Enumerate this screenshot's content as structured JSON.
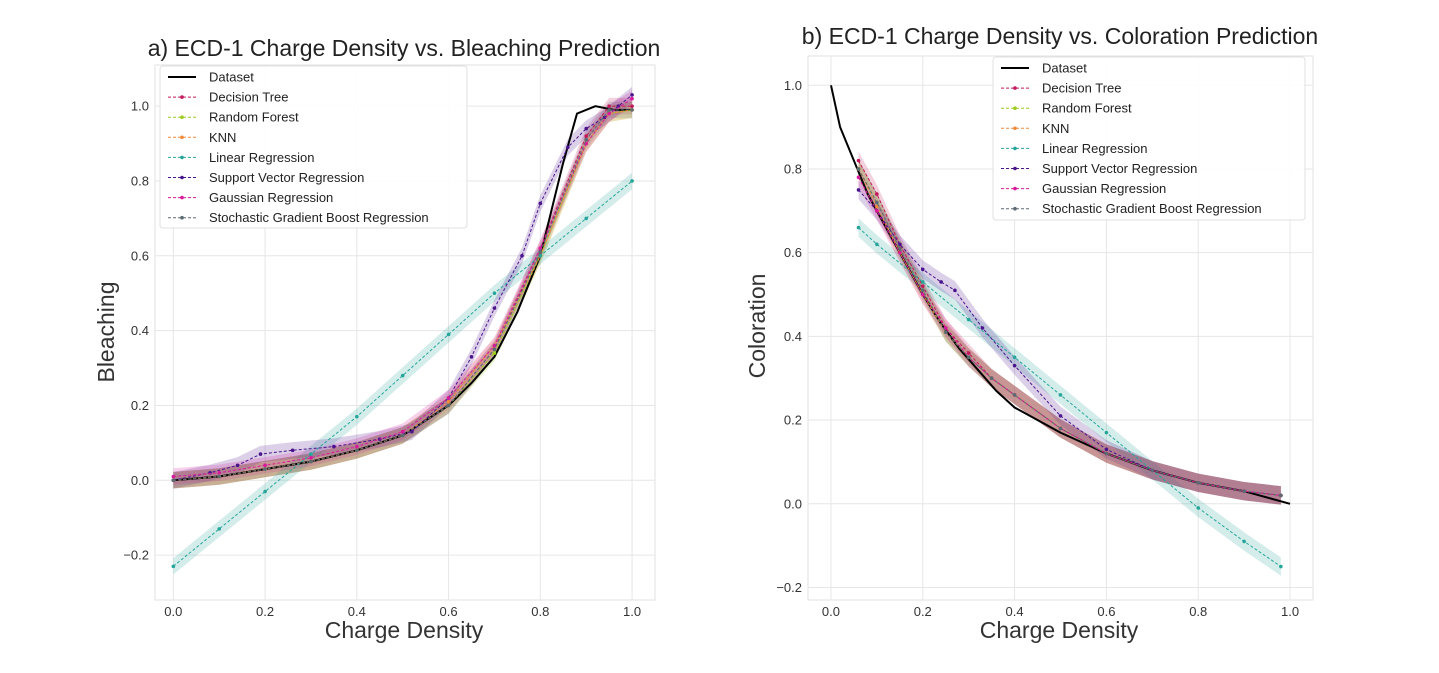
{
  "figure": {
    "panels": [
      {
        "title": "a) ECD-1 Charge Density vs. Bleaching Prediction",
        "xlabel": "Charge Density",
        "ylabel": "Bleaching"
      },
      {
        "title": "b) ECD-1 Charge Density vs. Coloration Prediction",
        "xlabel": "Charge Density",
        "ylabel": "Coloration"
      }
    ]
  },
  "chart_data": [
    {
      "type": "line",
      "title": "a) ECD-1 Charge Density vs. Bleaching Prediction",
      "xlabel": "Charge Density",
      "ylabel": "Bleaching",
      "xlim": [
        -0.04,
        1.05
      ],
      "ylim": [
        -0.32,
        1.11
      ],
      "xticks": [
        0.0,
        0.2,
        0.4,
        0.6,
        0.8,
        1.0
      ],
      "xtick_labels": [
        "0.0",
        "0.2",
        "0.4",
        "0.6",
        "0.8",
        "1.0"
      ],
      "yticks": [
        -0.2,
        0.0,
        0.2,
        0.4,
        0.6,
        0.8,
        1.0
      ],
      "ytick_labels": [
        "−0.2",
        "0.0",
        "0.2",
        "0.4",
        "0.6",
        "0.8",
        "1.0"
      ],
      "grid": true,
      "legend_position": "top-left",
      "series": [
        {
          "name": "Dataset",
          "color": "#000000",
          "style": "solid",
          "x": [
            0.0,
            0.1,
            0.2,
            0.3,
            0.4,
            0.5,
            0.55,
            0.6,
            0.65,
            0.7,
            0.75,
            0.8,
            0.85,
            0.88,
            0.92,
            0.96,
            1.0
          ],
          "y": [
            0.0,
            0.01,
            0.03,
            0.05,
            0.08,
            0.12,
            0.16,
            0.2,
            0.26,
            0.33,
            0.45,
            0.6,
            0.85,
            0.98,
            1.0,
            0.99,
            0.99
          ]
        },
        {
          "name": "Decision Tree",
          "color": "#c2185b",
          "style": "dashed",
          "x": [
            0.0,
            0.1,
            0.2,
            0.3,
            0.4,
            0.5,
            0.6,
            0.7,
            0.8,
            0.9,
            0.95,
            1.0
          ],
          "y": [
            0.0,
            0.01,
            0.03,
            0.05,
            0.08,
            0.12,
            0.2,
            0.35,
            0.62,
            0.92,
            1.0,
            1.0
          ]
        },
        {
          "name": "Random Forest",
          "color": "#9ccc1f",
          "style": "dashed",
          "x": [
            0.0,
            0.1,
            0.2,
            0.3,
            0.4,
            0.5,
            0.6,
            0.7,
            0.8,
            0.9,
            0.95,
            1.0
          ],
          "y": [
            0.0,
            0.01,
            0.03,
            0.05,
            0.08,
            0.12,
            0.2,
            0.34,
            0.6,
            0.9,
            0.98,
            0.99
          ]
        },
        {
          "name": "KNN",
          "color": "#f08a3a",
          "style": "dashed",
          "x": [
            0.0,
            0.1,
            0.2,
            0.3,
            0.4,
            0.5,
            0.6,
            0.7,
            0.8,
            0.9,
            0.95,
            1.0
          ],
          "y": [
            0.0,
            0.01,
            0.03,
            0.05,
            0.08,
            0.12,
            0.21,
            0.36,
            0.6,
            0.9,
            0.98,
            0.99
          ]
        },
        {
          "name": "Linear Regression",
          "color": "#26a69a",
          "style": "dashed",
          "x": [
            0.0,
            0.1,
            0.2,
            0.3,
            0.4,
            0.5,
            0.6,
            0.7,
            0.8,
            0.9,
            1.0
          ],
          "y": [
            -0.23,
            -0.13,
            -0.03,
            0.07,
            0.17,
            0.28,
            0.39,
            0.5,
            0.6,
            0.7,
            0.8
          ]
        },
        {
          "name": "Support Vector Regression",
          "color": "#4a148c",
          "style": "dashed",
          "x": [
            0.0,
            0.08,
            0.14,
            0.19,
            0.26,
            0.35,
            0.45,
            0.52,
            0.6,
            0.65,
            0.7,
            0.76,
            0.8,
            0.86,
            0.9,
            0.94,
            0.97,
            1.0
          ],
          "y": [
            0.0,
            0.02,
            0.04,
            0.07,
            0.08,
            0.09,
            0.11,
            0.13,
            0.22,
            0.33,
            0.46,
            0.6,
            0.74,
            0.89,
            0.94,
            0.97,
            1.0,
            1.03
          ]
        },
        {
          "name": "Gaussian Regression",
          "color": "#d81b9a",
          "style": "dashed",
          "x": [
            0.0,
            0.1,
            0.2,
            0.3,
            0.4,
            0.5,
            0.6,
            0.7,
            0.8,
            0.9,
            0.95,
            1.0
          ],
          "y": [
            0.01,
            0.02,
            0.04,
            0.06,
            0.09,
            0.13,
            0.22,
            0.36,
            0.62,
            0.9,
            0.98,
            1.02
          ]
        },
        {
          "name": "Stochastic Gradient Boost Regression",
          "color": "#5c6b73",
          "style": "dashed",
          "x": [
            0.0,
            0.1,
            0.2,
            0.3,
            0.4,
            0.5,
            0.6,
            0.7,
            0.8,
            0.9,
            0.95,
            1.0
          ],
          "y": [
            0.0,
            0.01,
            0.03,
            0.05,
            0.08,
            0.12,
            0.2,
            0.35,
            0.61,
            0.91,
            0.99,
            0.99
          ]
        }
      ]
    },
    {
      "type": "line",
      "title": "b) ECD-1 Charge Density vs. Coloration Prediction",
      "xlabel": "Charge Density",
      "ylabel": "Coloration",
      "xlim": [
        -0.05,
        1.05
      ],
      "ylim": [
        -0.23,
        1.07
      ],
      "xticks": [
        0.0,
        0.2,
        0.4,
        0.6,
        0.8,
        1.0
      ],
      "xtick_labels": [
        "0.0",
        "0.2",
        "0.4",
        "0.6",
        "0.8",
        "1.0"
      ],
      "yticks": [
        -0.2,
        0.0,
        0.2,
        0.4,
        0.6,
        0.8,
        1.0
      ],
      "ytick_labels": [
        "−0.2",
        "0.0",
        "0.2",
        "0.4",
        "0.6",
        "0.8",
        "1.0"
      ],
      "grid": true,
      "legend_position": "top-right",
      "series": [
        {
          "name": "Dataset",
          "color": "#000000",
          "style": "solid",
          "x": [
            0.0,
            0.02,
            0.05,
            0.08,
            0.12,
            0.16,
            0.2,
            0.24,
            0.28,
            0.32,
            0.36,
            0.4,
            0.5,
            0.6,
            0.7,
            0.8,
            0.9,
            1.0
          ],
          "y": [
            1.0,
            0.9,
            0.82,
            0.74,
            0.66,
            0.58,
            0.5,
            0.43,
            0.37,
            0.32,
            0.27,
            0.23,
            0.17,
            0.12,
            0.08,
            0.05,
            0.03,
            0.0
          ]
        },
        {
          "name": "Decision Tree",
          "color": "#c2185b",
          "style": "dashed",
          "x": [
            0.06,
            0.1,
            0.15,
            0.2,
            0.25,
            0.3,
            0.35,
            0.4,
            0.5,
            0.6,
            0.7,
            0.8,
            0.9,
            0.98
          ],
          "y": [
            0.82,
            0.74,
            0.62,
            0.52,
            0.42,
            0.36,
            0.3,
            0.26,
            0.18,
            0.12,
            0.08,
            0.05,
            0.03,
            0.02
          ]
        },
        {
          "name": "Random Forest",
          "color": "#9ccc1f",
          "style": "dashed",
          "x": [
            0.06,
            0.1,
            0.15,
            0.2,
            0.25,
            0.3,
            0.35,
            0.4,
            0.5,
            0.6,
            0.7,
            0.8,
            0.9,
            0.98
          ],
          "y": [
            0.8,
            0.72,
            0.61,
            0.51,
            0.41,
            0.35,
            0.3,
            0.26,
            0.18,
            0.12,
            0.08,
            0.05,
            0.03,
            0.02
          ]
        },
        {
          "name": "KNN",
          "color": "#f08a3a",
          "style": "dashed",
          "x": [
            0.06,
            0.1,
            0.15,
            0.2,
            0.25,
            0.3,
            0.35,
            0.4,
            0.5,
            0.6,
            0.7,
            0.8,
            0.9,
            0.98
          ],
          "y": [
            0.8,
            0.71,
            0.6,
            0.5,
            0.41,
            0.35,
            0.3,
            0.26,
            0.18,
            0.12,
            0.08,
            0.05,
            0.03,
            0.02
          ]
        },
        {
          "name": "Linear Regression",
          "color": "#26a69a",
          "style": "dashed",
          "x": [
            0.06,
            0.1,
            0.2,
            0.3,
            0.4,
            0.5,
            0.6,
            0.7,
            0.8,
            0.9,
            0.98
          ],
          "y": [
            0.66,
            0.62,
            0.53,
            0.44,
            0.35,
            0.26,
            0.17,
            0.08,
            -0.01,
            -0.09,
            -0.15
          ]
        },
        {
          "name": "Support Vector Regression",
          "color": "#4a148c",
          "style": "dashed",
          "x": [
            0.06,
            0.1,
            0.15,
            0.2,
            0.24,
            0.27,
            0.33,
            0.4,
            0.5,
            0.6,
            0.7,
            0.8,
            0.9,
            0.98
          ],
          "y": [
            0.75,
            0.7,
            0.62,
            0.56,
            0.53,
            0.51,
            0.42,
            0.33,
            0.21,
            0.13,
            0.08,
            0.05,
            0.03,
            0.02
          ]
        },
        {
          "name": "Gaussian Regression",
          "color": "#d81b9a",
          "style": "dashed",
          "x": [
            0.06,
            0.1,
            0.15,
            0.2,
            0.25,
            0.3,
            0.35,
            0.4,
            0.5,
            0.6,
            0.7,
            0.8,
            0.9,
            0.98
          ],
          "y": [
            0.78,
            0.7,
            0.6,
            0.5,
            0.42,
            0.35,
            0.3,
            0.26,
            0.18,
            0.12,
            0.08,
            0.05,
            0.03,
            0.02
          ]
        },
        {
          "name": "Stochastic Gradient Boost Regression",
          "color": "#5c6b73",
          "style": "dashed",
          "x": [
            0.06,
            0.1,
            0.15,
            0.2,
            0.25,
            0.3,
            0.35,
            0.4,
            0.5,
            0.6,
            0.7,
            0.8,
            0.9,
            0.98
          ],
          "y": [
            0.8,
            0.72,
            0.61,
            0.51,
            0.41,
            0.35,
            0.3,
            0.26,
            0.18,
            0.12,
            0.08,
            0.05,
            0.03,
            0.02
          ]
        }
      ]
    }
  ]
}
